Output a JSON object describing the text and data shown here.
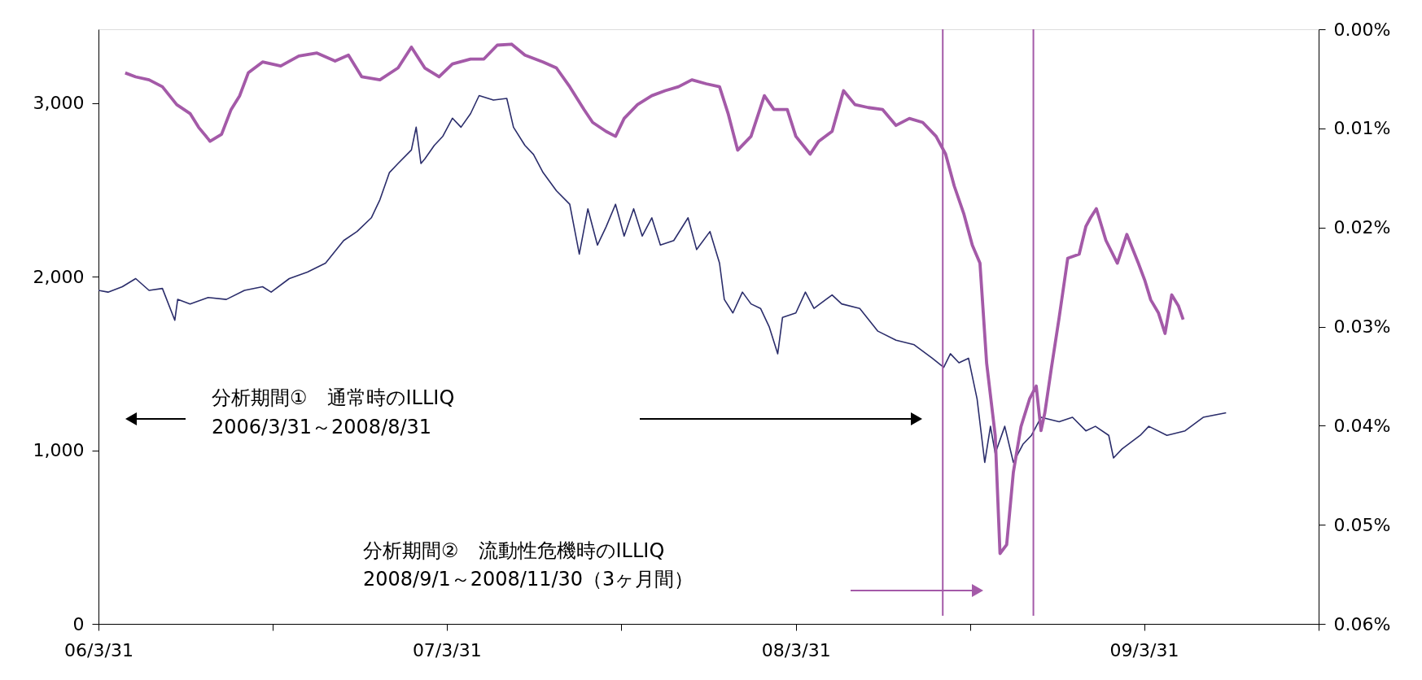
{
  "chart_data": {
    "type": "line",
    "annotations": [
      "分析期間①　通常時のILLIQ",
      "2006/3/31～2008/8/31",
      "分析期間②　流動性危機時のILLIQ",
      "2008/9/1～2008/11/30（3ヶ月間）"
    ],
    "xlim": [
      "2006-03-31",
      "2009-09-30"
    ],
    "xticks": [
      {
        "value": "2006-03-31",
        "label": "06/3/31"
      },
      {
        "value": "2006-09-30",
        "label": null
      },
      {
        "value": "2007-03-31",
        "label": "07/3/31"
      },
      {
        "value": "2007-09-30",
        "label": null
      },
      {
        "value": "2008-03-31",
        "label": "08/3/31"
      },
      {
        "value": "2008-09-30",
        "label": null
      },
      {
        "value": "2009-03-31",
        "label": "09/3/31"
      },
      {
        "value": "2009-09-30",
        "label": null
      }
    ],
    "ylim": [
      0,
      3425
    ],
    "yticks": [
      0,
      {
        "value": 1000,
        "label": "1,000"
      },
      {
        "value": 2000,
        "label": "2,000"
      },
      {
        "value": 3000,
        "label": "3,000"
      }
    ],
    "y2lim": [
      0.06,
      0.0
    ],
    "y2ticks": [
      {
        "value": 0.0,
        "label": "0.00%"
      },
      {
        "value": 0.01,
        "label": "0.01%"
      },
      {
        "value": 0.02,
        "label": "0.02%"
      },
      {
        "value": 0.03,
        "label": "0.03%"
      },
      {
        "value": 0.04,
        "label": "0.04%"
      },
      {
        "value": 0.05,
        "label": "0.05%"
      },
      {
        "value": 0.06,
        "label": "0.06%"
      }
    ],
    "grid": false,
    "marker": "none",
    "line_style": "solid",
    "ref_lines": [
      {
        "axis": "x",
        "value": "2008-09-01",
        "color": "#a45aa8"
      },
      {
        "axis": "x",
        "value": "2008-12-05",
        "color": "#a45aa8"
      }
    ],
    "series": [
      {
        "color": "#2b2d6b",
        "x": [
          "2006-03-31",
          "2006-04-10",
          "2006-04-25",
          "2006-05-09",
          "2006-05-23",
          "2006-06-06",
          "2006-06-19",
          "2006-06-22",
          "2006-07-05",
          "2006-07-24",
          "2006-08-12",
          "2006-08-31",
          "2006-09-19",
          "2006-09-28",
          "2006-10-17",
          "2006-11-05",
          "2006-11-24",
          "2006-12-13",
          "2006-12-27",
          "2007-01-11",
          "2007-01-20",
          "2007-01-30",
          "2007-02-08",
          "2007-02-22",
          "2007-02-27",
          "2007-03-04",
          "2007-03-08",
          "2007-03-18",
          "2007-03-27",
          "2007-04-06",
          "2007-04-15",
          "2007-04-25",
          "2007-05-04",
          "2007-05-19",
          "2007-06-02",
          "2007-06-09",
          "2007-06-21",
          "2007-06-30",
          "2007-07-10",
          "2007-07-24",
          "2007-08-07",
          "2007-08-17",
          "2007-08-26",
          "2007-09-05",
          "2007-09-14",
          "2007-09-24",
          "2007-10-03",
          "2007-10-13",
          "2007-10-22",
          "2007-11-01",
          "2007-11-10",
          "2007-11-24",
          "2007-12-09",
          "2007-12-18",
          "2008-01-01",
          "2008-01-11",
          "2008-01-16",
          "2008-01-25",
          "2008-02-04",
          "2008-02-13",
          "2008-02-23",
          "2008-03-03",
          "2008-03-12",
          "2008-03-17",
          "2008-03-31",
          "2008-04-10",
          "2008-04-19",
          "2008-05-08",
          "2008-05-18",
          "2008-06-06",
          "2008-06-25",
          "2008-07-14",
          "2008-08-02",
          "2008-08-21",
          "2008-09-02",
          "2008-09-09",
          "2008-09-18",
          "2008-09-28",
          "2008-10-07",
          "2008-10-15",
          "2008-10-21",
          "2008-10-26",
          "2008-11-05",
          "2008-11-14",
          "2008-11-24",
          "2008-12-03",
          "2008-12-08",
          "2008-12-13",
          "2009-01-01",
          "2009-01-15",
          "2009-01-29",
          "2009-02-08",
          "2009-02-22",
          "2009-02-27",
          "2009-03-08",
          "2009-03-27",
          "2009-04-05",
          "2009-04-24",
          "2009-05-13",
          "2009-06-01",
          "2009-06-25"
        ],
        "values": [
          1921,
          1911,
          1942,
          1989,
          1921,
          1932,
          1749,
          1869,
          1843,
          1880,
          1869,
          1921,
          1942,
          1911,
          1989,
          2026,
          2078,
          2208,
          2260,
          2339,
          2443,
          2600,
          2652,
          2730,
          2861,
          2652,
          2678,
          2756,
          2809,
          2913,
          2861,
          2939,
          3043,
          3017,
          3027,
          2861,
          2756,
          2704,
          2600,
          2495,
          2417,
          2130,
          2391,
          2182,
          2286,
          2417,
          2234,
          2391,
          2234,
          2339,
          2182,
          2208,
          2339,
          2156,
          2260,
          2078,
          1869,
          1791,
          1911,
          1843,
          1817,
          1712,
          1556,
          1765,
          1791,
          1911,
          1817,
          1895,
          1843,
          1817,
          1686,
          1634,
          1608,
          1530,
          1478,
          1556,
          1504,
          1530,
          1295,
          930,
          1138,
          982,
          1138,
          930,
          1034,
          1086,
          1138,
          1190,
          1164,
          1190,
          1112,
          1138,
          1086,
          956,
          1008,
          1086,
          1138,
          1086,
          1112,
          1190,
          1216
        ]
      },
      {
        "color": "#a45aa8",
        "axis": "y2",
        "x": [
          "2006-04-28",
          "2006-05-09",
          "2006-05-23",
          "2006-06-06",
          "2006-06-21",
          "2006-07-05",
          "2006-07-14",
          "2006-07-26",
          "2006-08-07",
          "2006-08-17",
          "2006-08-26",
          "2006-09-04",
          "2006-09-19",
          "2006-10-08",
          "2006-10-27",
          "2006-11-15",
          "2006-12-04",
          "2006-12-18",
          "2007-01-01",
          "2007-01-20",
          "2007-02-08",
          "2007-02-22",
          "2007-03-08",
          "2007-03-23",
          "2007-04-06",
          "2007-04-25",
          "2007-05-09",
          "2007-05-23",
          "2007-06-07",
          "2007-06-21",
          "2007-07-10",
          "2007-07-24",
          "2007-08-07",
          "2007-08-22",
          "2007-08-31",
          "2007-09-14",
          "2007-09-24",
          "2007-10-03",
          "2007-10-17",
          "2007-11-01",
          "2007-11-15",
          "2007-11-29",
          "2007-12-13",
          "2007-12-28",
          "2008-01-11",
          "2008-01-20",
          "2008-01-30",
          "2008-02-13",
          "2008-02-27",
          "2008-03-08",
          "2008-03-22",
          "2008-03-31",
          "2008-04-15",
          "2008-04-24",
          "2008-05-08",
          "2008-05-20",
          "2008-06-01",
          "2008-06-15",
          "2008-06-30",
          "2008-07-14",
          "2008-07-28",
          "2008-08-11",
          "2008-08-25",
          "2008-09-04",
          "2008-09-13",
          "2008-09-23",
          "2008-10-02",
          "2008-10-10",
          "2008-10-17",
          "2008-10-26",
          "2008-10-31",
          "2008-11-07",
          "2008-11-14",
          "2008-11-22",
          "2008-12-01",
          "2008-12-08",
          "2008-12-13",
          "2008-12-17",
          "2008-12-24",
          "2009-01-01",
          "2009-01-10",
          "2009-01-22",
          "2009-01-29",
          "2009-02-03",
          "2009-02-09",
          "2009-02-19",
          "2009-03-03",
          "2009-03-13",
          "2009-03-25",
          "2009-04-01",
          "2009-04-07",
          "2009-04-15",
          "2009-04-22",
          "2009-04-29",
          "2009-05-06",
          "2009-05-11"
        ],
        "values": [
          0.0044,
          0.0048,
          0.0051,
          0.0058,
          0.0076,
          0.0085,
          0.0099,
          0.0113,
          0.0106,
          0.0081,
          0.0067,
          0.0044,
          0.0033,
          0.0037,
          0.0027,
          0.0024,
          0.0032,
          0.0026,
          0.0048,
          0.0051,
          0.0039,
          0.0018,
          0.0039,
          0.0048,
          0.0035,
          0.003,
          0.003,
          0.0016,
          0.0015,
          0.0026,
          0.0033,
          0.0039,
          0.0058,
          0.0081,
          0.0094,
          0.0103,
          0.0108,
          0.009,
          0.0076,
          0.0067,
          0.0062,
          0.0058,
          0.0051,
          0.0055,
          0.0058,
          0.0085,
          0.0122,
          0.0108,
          0.0067,
          0.0081,
          0.0081,
          0.0108,
          0.0126,
          0.0113,
          0.0103,
          0.0062,
          0.0076,
          0.0079,
          0.0081,
          0.0097,
          0.009,
          0.0094,
          0.0108,
          0.0126,
          0.0158,
          0.0186,
          0.0218,
          0.0236,
          0.0337,
          0.041,
          0.0529,
          0.052,
          0.0447,
          0.0401,
          0.0373,
          0.036,
          0.0405,
          0.0387,
          0.0341,
          0.0291,
          0.0231,
          0.0227,
          0.0199,
          0.019,
          0.0181,
          0.0213,
          0.0236,
          0.0207,
          0.0236,
          0.0254,
          0.0273,
          0.0286,
          0.0307,
          0.0268,
          0.0279,
          0.0293
        ]
      }
    ]
  }
}
